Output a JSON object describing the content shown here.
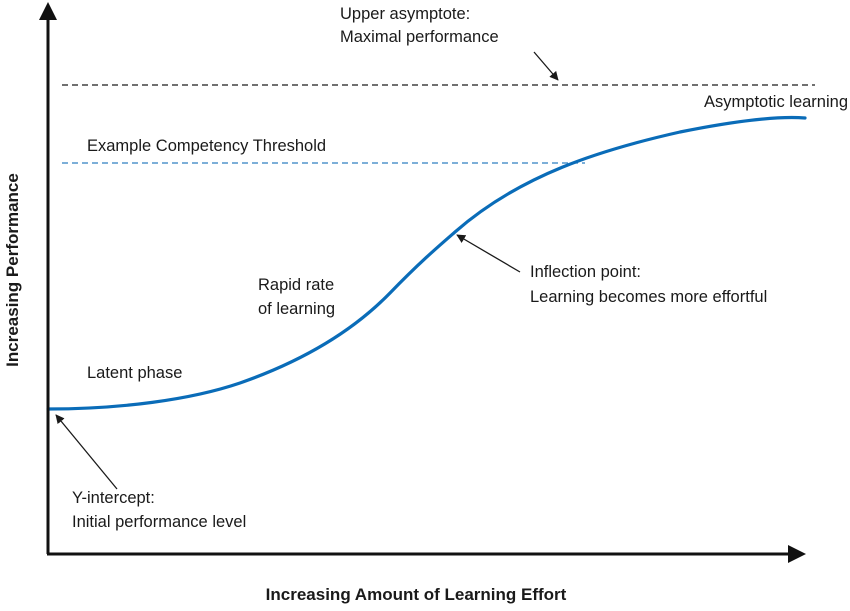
{
  "chart_data": {
    "type": "line",
    "title": "",
    "xlabel": "Increasing Amount of Learning Effort",
    "ylabel": "Increasing Performance",
    "curve": "sigmoid learning curve",
    "reference_lines": [
      {
        "name": "Upper asymptote",
        "style": "dashed",
        "color": "#1a1a1a"
      },
      {
        "name": "Example Competency Threshold",
        "style": "dashed",
        "color": "#2f7fc1"
      }
    ],
    "annotations": {
      "upper_asymptote": [
        "Upper asymptote:",
        "Maximal performance"
      ],
      "asymptotic_learning": "Asymptotic learning",
      "competency_threshold": "Example Competency Threshold",
      "rapid_rate": [
        "Rapid rate",
        "of learning"
      ],
      "inflection_point": [
        "Inflection point:",
        "Learning becomes more effortful"
      ],
      "latent_phase": "Latent phase",
      "y_intercept": [
        "Y-intercept:",
        "Initial performance level"
      ]
    }
  },
  "colors": {
    "curve": "#0a6cb8",
    "threshold": "#2f7fc1",
    "axis": "#111111",
    "text": "#1a1a1a"
  }
}
